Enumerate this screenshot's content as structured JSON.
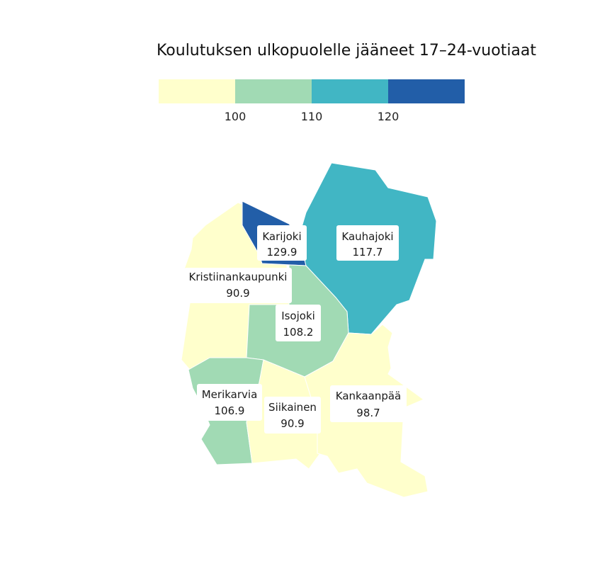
{
  "title": "Koulutuksen ulkopuolelle jääneet 17–24-vuotiaat",
  "legend": {
    "bins": [
      {
        "color": "#ffffcc"
      },
      {
        "color": "#a1dab4"
      },
      {
        "color": "#41b6c4"
      },
      {
        "color": "#225ea8"
      }
    ],
    "ticks": [
      "100",
      "110",
      "120"
    ]
  },
  "chart_data": {
    "type": "choropleth",
    "breaks": [
      100,
      110,
      120
    ],
    "regions": [
      {
        "name": "Karijoki",
        "value": 129.9,
        "value_label": "129.9"
      },
      {
        "name": "Kauhajoki",
        "value": 117.7,
        "value_label": "117.7"
      },
      {
        "name": "Kristiinankaupunki",
        "value": 90.9,
        "value_label": "90.9"
      },
      {
        "name": "Isojoki",
        "value": 108.2,
        "value_label": "108.2"
      },
      {
        "name": "Merikarvia",
        "value": 106.9,
        "value_label": "106.9"
      },
      {
        "name": "Siikainen",
        "value": 90.9,
        "value_label": "90.9"
      },
      {
        "name": "Kankaanpää",
        "value": 98.7,
        "value_label": "98.7"
      }
    ]
  }
}
